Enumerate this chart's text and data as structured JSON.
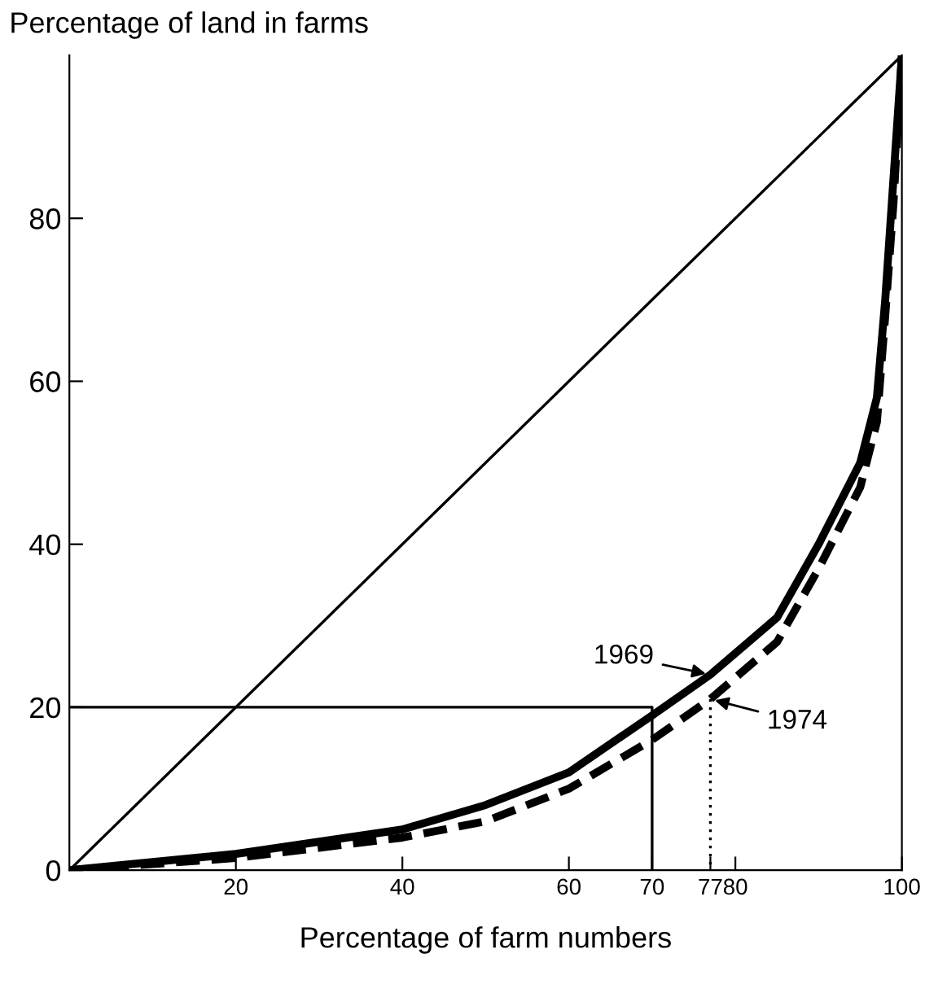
{
  "chart_data": {
    "type": "line",
    "xlabel": "Percentage of farm numbers",
    "ylabel": "Percentage of land in farms",
    "series": [
      {
        "color": "#000000",
        "line_style": "solid",
        "x": [
          0,
          100
        ],
        "values": [
          0,
          100
        ]
      },
      {
        "color": "#000000",
        "line_style": "solid",
        "x": [
          0,
          70,
          70
        ],
        "values": [
          20,
          20,
          0
        ]
      },
      {
        "color": "#000000",
        "line_style": "dotted",
        "x": [
          77,
          77
        ],
        "values": [
          21,
          0
        ]
      },
      {
        "color": "#000000",
        "line_style": "solid",
        "x": [
          0,
          20,
          40,
          50,
          60,
          70,
          77,
          85,
          90,
          95,
          97,
          98,
          99,
          100
        ],
        "values": [
          0,
          2,
          5,
          8,
          12,
          19,
          24,
          31,
          40,
          50,
          58,
          70,
          85,
          100
        ]
      },
      {
        "color": "#000000",
        "line_style": "dashed",
        "x": [
          0,
          20,
          40,
          50,
          60,
          70,
          77,
          85,
          90,
          95,
          97,
          98,
          99,
          100
        ],
        "values": [
          0,
          1.5,
          4,
          6,
          10,
          16,
          21,
          28,
          37,
          47,
          55,
          68,
          82,
          100
        ]
      }
    ],
    "annotations": [
      {
        "text": "1969",
        "x": 77,
        "y": 24
      },
      {
        "text": "1974",
        "x": 77,
        "y": 21
      }
    ],
    "xlim": [
      0,
      100
    ],
    "ylim": [
      0,
      100
    ],
    "xticks": [
      20,
      40,
      60,
      70,
      77,
      80,
      100
    ],
    "yticks": [
      0,
      20,
      40,
      60,
      80
    ],
    "grid": false
  }
}
